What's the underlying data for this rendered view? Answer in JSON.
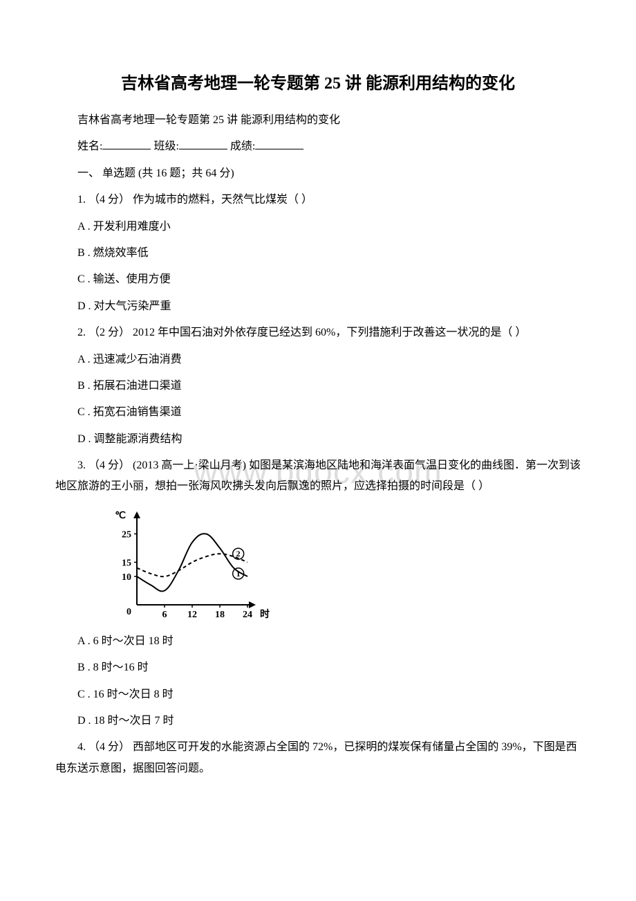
{
  "title": "吉林省高考地理一轮专题第 25 讲 能源利用结构的变化",
  "subtitle": "吉林省高考地理一轮专题第 25 讲 能源利用结构的变化",
  "form": {
    "name_label": "姓名:",
    "class_label": "班级:",
    "score_label": "成绩:"
  },
  "section_header": "一、 单选题 (共 16 题；共 64 分)",
  "watermark": "www.bdocx.com",
  "q1": {
    "stem": "1. （4 分） 作为城市的燃料，天然气比煤炭（ ）",
    "A": "A . 开发利用难度小",
    "B": "B . 燃烧效率低",
    "C": "C . 输送、使用方便",
    "D": "D . 对大气污染严重"
  },
  "q2": {
    "stem": "2. （2 分） 2012 年中国石油对外依存度已经达到 60%，下列措施利于改善这一状况的是（ ）",
    "A": "A . 迅速减少石油消费",
    "B": "B . 拓展石油进口渠道",
    "C": "C . 拓宽石油销售渠道",
    "D": "D . 调整能源消费结构"
  },
  "q3": {
    "stem": "3. （4 分） (2013 高一上·梁山月考) 如图是某滨海地区陆地和海洋表面气温日变化的曲线图．第一次到该地区旅游的王小丽，想拍一张海风吹拂头发向后飘逸的照片，应选择拍摄的时间段是（ ）",
    "A": "A . 6 时～次日 18 时",
    "B": "B . 8 时～16 时",
    "C": "C . 16 时～次日 8 时",
    "D": "D . 18 时～次日 7 时"
  },
  "q4": {
    "stem": "4. （4 分） 西部地区可开发的水能资源占全国的 72%，已探明的煤炭保有储量占全国的 39%，下图是西电东送示意图，据图回答问题。"
  },
  "chart": {
    "type": "line",
    "y_unit": "℃",
    "x_unit": "时",
    "y_ticks": [
      0,
      10,
      15,
      25
    ],
    "y_tick_labels": [
      "0",
      "10",
      "15",
      "25"
    ],
    "x_ticks": [
      0,
      6,
      12,
      18,
      24
    ],
    "x_tick_labels": [
      "0",
      "6",
      "12",
      "18",
      "24"
    ],
    "xlim": [
      0,
      24
    ],
    "ylim": [
      0,
      30
    ],
    "series": [
      {
        "name": "series-1",
        "label": "①",
        "style": "solid",
        "color": "#000000",
        "width": 2,
        "points_x": [
          0,
          3,
          6,
          9,
          12,
          15,
          18,
          21,
          24
        ],
        "points_y": [
          10,
          7,
          5,
          12,
          22,
          25,
          20,
          13,
          10
        ]
      },
      {
        "name": "series-2",
        "label": "②",
        "style": "dashed",
        "color": "#000000",
        "width": 2,
        "points_x": [
          0,
          3,
          6,
          9,
          12,
          15,
          18,
          21,
          24
        ],
        "points_y": [
          13,
          11,
          10,
          12,
          15,
          17,
          18,
          17,
          15
        ]
      }
    ],
    "label_markers": [
      {
        "text": "①",
        "x": 22,
        "y": 11
      },
      {
        "text": "②",
        "x": 22,
        "y": 18
      }
    ],
    "axis_color": "#000000",
    "axis_width": 2,
    "font_size": 14,
    "font_weight": "bold",
    "font_family": "SimSun, serif",
    "background": "#ffffff"
  }
}
